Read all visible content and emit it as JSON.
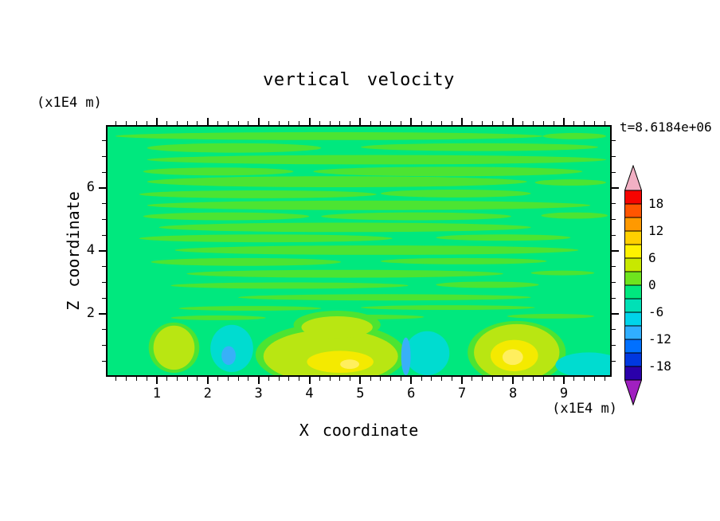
{
  "title": "vertical velocity",
  "annotation": "t=8.6184e+06",
  "axes": {
    "x": {
      "label": "X coordinate",
      "unit": "(x1E4 m)",
      "major_ticks": [
        1,
        2,
        3,
        4,
        5,
        6,
        7,
        8,
        9
      ],
      "minor_step": 0.2,
      "range": [
        0,
        9.94
      ]
    },
    "y": {
      "label": "Z coordinate",
      "unit": "(x1E4 m)",
      "major_ticks": [
        2,
        4,
        6
      ],
      "minor_step": 0.5,
      "range": [
        0,
        8
      ]
    }
  },
  "colorbar": {
    "labels": [
      18,
      12,
      6,
      0,
      -6,
      -12,
      -18
    ],
    "cells": [
      "#f60400",
      "#ff5500",
      "#ff9900",
      "#ffd000",
      "#fff200",
      "#c8e800",
      "#6ee41e",
      "#00e87e",
      "#00e0b6",
      "#00d4ea",
      "#30aeff",
      "#0070ff",
      "#0038e0",
      "#2a00aa"
    ],
    "over_color": "#f2b0c4",
    "under_color": "#a020c0"
  },
  "palette": {
    "base": "#00e87e",
    "streak": "#4ce432",
    "yellow_green": "#b9e612",
    "yellow": "#f4ea00",
    "bright_yellow": "#ffef5e",
    "cyan": "#00dcd0",
    "light_blue": "#38b0f8"
  },
  "chart_data": {
    "type": "heatmap",
    "title": "vertical velocity",
    "xlabel": "X coordinate (x1E4 m)",
    "ylabel": "Z coordinate (x1E4 m)",
    "annotation": "t=8.6184e+06",
    "x_ticks": [
      1,
      2,
      3,
      4,
      5,
      6,
      7,
      8,
      9
    ],
    "y_ticks": [
      2,
      4,
      6
    ],
    "xlim": [
      0,
      9.9
    ],
    "ylim": [
      0,
      8
    ],
    "grid": false,
    "legend_position": "right",
    "contour_interval": 3,
    "levels": [
      -21,
      -18,
      -15,
      -12,
      -9,
      -6,
      -3,
      0,
      3,
      6,
      9,
      12,
      15,
      18,
      21
    ],
    "colorbar_labels": [
      18,
      12,
      6,
      0,
      -6,
      -12,
      -18
    ],
    "field_summary": {
      "background_value_range": [
        -3,
        0
      ],
      "streak_bands_value_range": [
        0,
        3
      ],
      "streak_bands_region": "horizontal bands throughout z = 1.5 to 8",
      "updrafts": [
        {
          "x": 1.3,
          "z": 0.9,
          "peak_value_range": [
            3,
            6
          ]
        },
        {
          "x": 4.5,
          "z": 0.7,
          "peak_value_range": [
            6,
            9
          ]
        },
        {
          "x": 8.0,
          "z": 0.6,
          "peak_value_range": [
            6,
            9
          ]
        }
      ],
      "downdrafts": [
        {
          "x": 2.4,
          "z": 0.8,
          "peak_value_range": [
            -9,
            -6
          ]
        },
        {
          "x": 6.0,
          "z": 0.6,
          "peak_value_range": [
            -12,
            -9
          ]
        },
        {
          "x": 9.4,
          "z": 0.3,
          "peak_value_range": [
            -6,
            -3
          ]
        }
      ]
    }
  }
}
